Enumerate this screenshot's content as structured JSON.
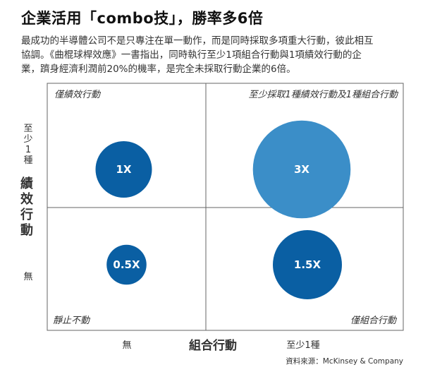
{
  "header": {
    "title": "企業活用「combo技」，勝率多6倍",
    "description_lines": [
      "最成功的半導體公司不是只專注在單一動作，而是同時採取多項重大行動，彼此相互",
      "協調。《曲棍球桿效應》一書指出，同時執行至少1項組合行動與1項績效行動的企",
      "業，躋身經濟利潤前20%的機率，是完全未採取行動企業的6倍。"
    ]
  },
  "chart_data": {
    "type": "bubble-matrix",
    "xlabel": "組合行動",
    "ylabel": "績效行動",
    "x_ticks": [
      "無",
      "至少1種"
    ],
    "y_ticks": [
      "無",
      "至少1種"
    ],
    "quadrants": [
      {
        "label": "僅績效行動",
        "portfolio": "無",
        "performance": "至少1種",
        "multiple_text": "1X",
        "value": 1,
        "color": "#0a5fa3"
      },
      {
        "label": "至少採取1種績效行動及1種組合行動",
        "portfolio": "至少1種",
        "performance": "至少1種",
        "multiple_text": "3X",
        "value": 3,
        "color": "#3b8ec8"
      },
      {
        "label": "靜止不動",
        "portfolio": "無",
        "performance": "無",
        "multiple_text": "0.5X",
        "value": 0.5,
        "color": "#0a5fa3"
      },
      {
        "label": "僅組合行動",
        "portfolio": "至少1種",
        "performance": "無",
        "multiple_text": "1.5X",
        "value": 1.5,
        "color": "#0a5fa3"
      }
    ],
    "source": "資料來源：McKinsey & Company"
  }
}
